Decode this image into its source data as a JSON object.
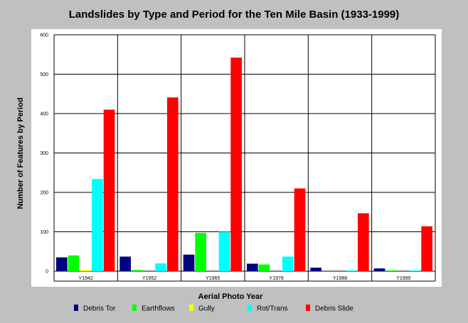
{
  "chart_data": {
    "type": "bar",
    "title": "Landslides by Type and Period for the Ten Mile Basin (1933-1999)",
    "xlabel": "Aerial Photo Year",
    "ylabel": "Number of Features by Period",
    "ylim": [
      0,
      600
    ],
    "yticks": [
      0,
      100,
      200,
      300,
      400,
      500,
      600
    ],
    "grid": true,
    "legend_position": "bottom",
    "categories": [
      "Y1942",
      "Y1952",
      "Y1965",
      "Y1978",
      "Y1988",
      "Y1999"
    ],
    "series": [
      {
        "name": "Debris Tor",
        "color": "#000080",
        "values": [
          35,
          37,
          42,
          19,
          9,
          7
        ]
      },
      {
        "name": "Earthflows",
        "color": "#00ff00",
        "values": [
          40,
          3,
          97,
          17,
          0,
          2
        ]
      },
      {
        "name": "Gully",
        "color": "#ffff00",
        "values": [
          3,
          0,
          0,
          0,
          0,
          0
        ]
      },
      {
        "name": "Rot/Trans",
        "color": "#00ffff",
        "values": [
          234,
          20,
          100,
          37,
          2,
          2
        ]
      },
      {
        "name": "Debris Slide",
        "color": "#ff0000",
        "values": [
          410,
          441,
          542,
          210,
          147,
          114
        ]
      }
    ]
  }
}
